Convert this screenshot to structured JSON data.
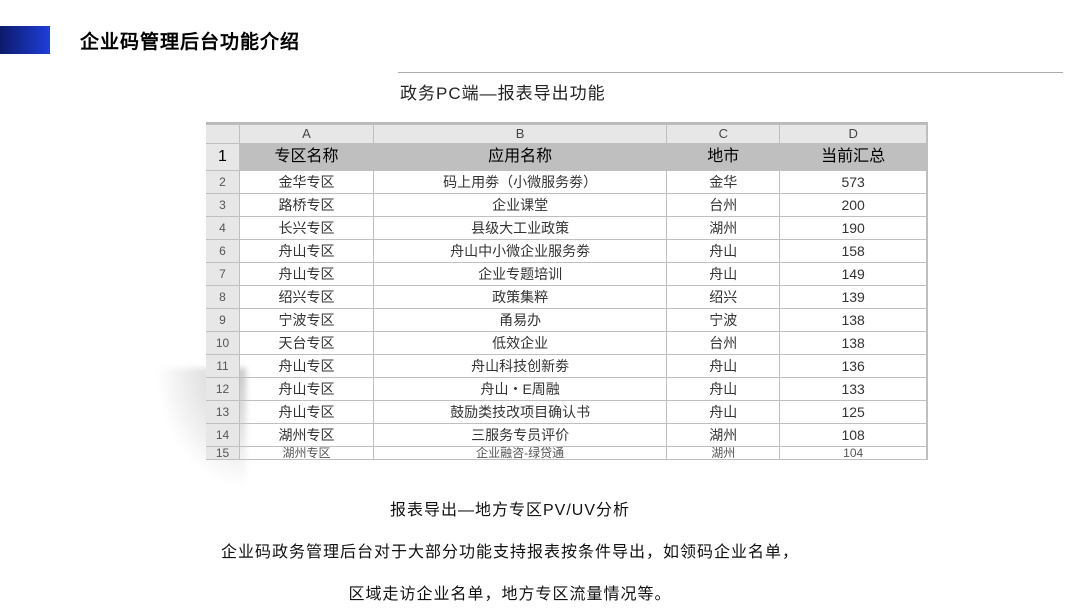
{
  "title": "企业码管理后台功能介绍",
  "subtitle": "政务PC端—报表导出功能",
  "spreadsheet": {
    "col_letters": [
      "A",
      "B",
      "C",
      "D"
    ],
    "header": [
      "专区名称",
      "应用名称",
      "地市",
      "当前汇总"
    ],
    "row_numbers": [
      "1",
      "2",
      "3",
      "4",
      "6",
      "7",
      "8",
      "9",
      "10",
      "11",
      "12",
      "13",
      "14",
      "15"
    ],
    "rows": [
      [
        "金华专区",
        "码上用劵（小微服务劵）",
        "金华",
        "573"
      ],
      [
        "路桥专区",
        "企业课堂",
        "台州",
        "200"
      ],
      [
        "长兴专区",
        "县级大工业政策",
        "湖州",
        "190"
      ],
      [
        "舟山专区",
        "舟山中小微企业服务劵",
        "舟山",
        "158"
      ],
      [
        "舟山专区",
        "企业专题培训",
        "舟山",
        "149"
      ],
      [
        "绍兴专区",
        "政策集粹",
        "绍兴",
        "139"
      ],
      [
        "宁波专区",
        "甬易办",
        "宁波",
        "138"
      ],
      [
        "天台专区",
        "低效企业",
        "台州",
        "138"
      ],
      [
        "舟山专区",
        "舟山科技创新劵",
        "舟山",
        "136"
      ],
      [
        "舟山专区",
        "舟山・E周融",
        "舟山",
        "133"
      ],
      [
        "舟山专区",
        "鼓励类技改项目确认书",
        "舟山",
        "125"
      ],
      [
        "湖州专区",
        "三服务专员评价",
        "湖州",
        "108"
      ],
      [
        "湖州专区",
        "企业融咨-绿贷通",
        "湖州",
        "104"
      ]
    ]
  },
  "desc_heading": "报表导出—地方专区PV/UV分析",
  "desc_line1": "企业码政务管理后台对于大部分功能支持报表按条件导出，如领码企业名单，",
  "desc_line2": "区域走访企业名单，地方专区流量情况等。",
  "colors": {
    "blue_left": "#0d1a6a",
    "blue_right": "#1f3fd8",
    "grid": "#bfbfbf",
    "head_bg": "#e7e7e7"
  }
}
